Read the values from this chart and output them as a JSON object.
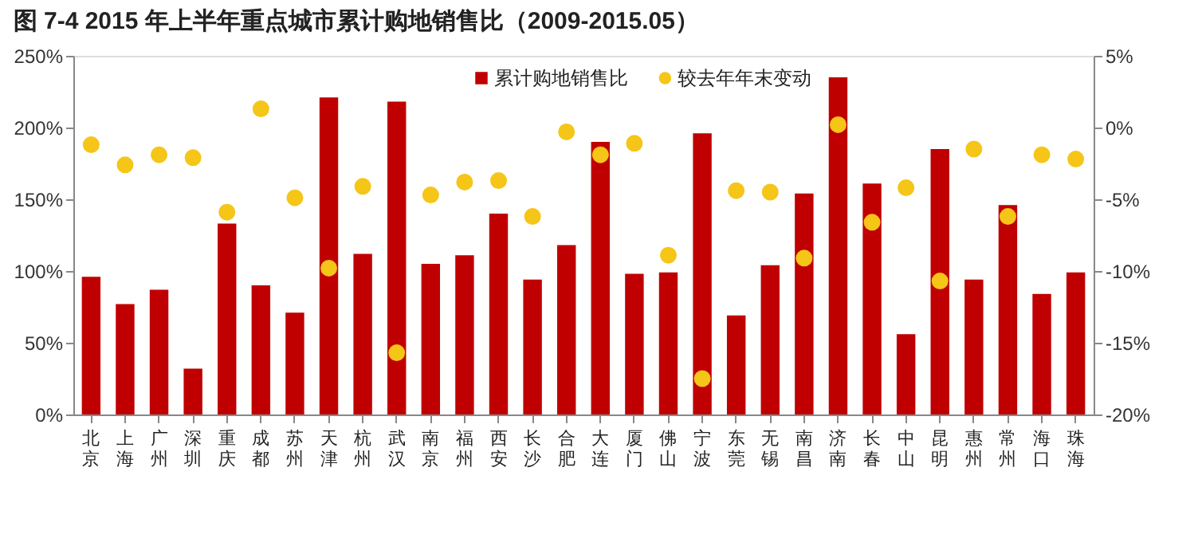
{
  "chart_data": {
    "type": "bar",
    "title": "图 7-4 2015 年上半年重点城市累计购地销售比（2009-2015.05）",
    "categories": [
      "北京",
      "上海",
      "广州",
      "深圳",
      "重庆",
      "成都",
      "苏州",
      "天津",
      "杭州",
      "武汉",
      "南京",
      "福州",
      "西安",
      "长沙",
      "合肥",
      "大连",
      "厦门",
      "佛山",
      "宁波",
      "东莞",
      "无锡",
      "南昌",
      "济南",
      "长春",
      "中山",
      "昆明",
      "惠州",
      "常州",
      "海口",
      "珠海"
    ],
    "series": [
      {
        "name": "累计购地销售比",
        "color": "#c00000",
        "values": [
          96,
          77,
          87,
          32,
          133,
          90,
          71,
          221,
          112,
          218,
          105,
          111,
          140,
          94,
          118,
          190,
          98,
          99,
          196,
          69,
          104,
          154,
          235,
          161,
          56,
          185,
          94,
          146,
          84,
          99
        ]
      },
      {
        "name": "较去年年末变动",
        "type": "scatter",
        "axis": "y2",
        "color": "#f5c518",
        "marker": "circle",
        "values": [
          -1.2,
          -2.6,
          -1.9,
          -2.1,
          -5.9,
          1.3,
          -4.9,
          -9.8,
          -4.1,
          -15.7,
          -4.7,
          -3.8,
          -3.7,
          -6.2,
          -0.3,
          -1.9,
          -1.1,
          -8.9,
          -17.5,
          -4.4,
          -4.5,
          -9.1,
          0.2,
          -6.6,
          -4.2,
          -10.7,
          -1.5,
          -6.2,
          -1.9,
          -2.2
        ]
      }
    ],
    "ylim": [
      0,
      250
    ],
    "yticks": [
      {
        "value": 0,
        "label": "0%"
      },
      {
        "value": 50,
        "label": "50%"
      },
      {
        "value": 100,
        "label": "100%"
      },
      {
        "value": 150,
        "label": "150%"
      },
      {
        "value": 200,
        "label": "200%"
      },
      {
        "value": 250,
        "label": "250%"
      }
    ],
    "y2lim": [
      -20,
      5
    ],
    "y2ticks": [
      {
        "value": -20,
        "label": "-20%"
      },
      {
        "value": -15,
        "label": "-15%"
      },
      {
        "value": -10,
        "label": "-10%"
      },
      {
        "value": -5,
        "label": "-5%"
      },
      {
        "value": 0,
        "label": "0%"
      },
      {
        "value": 5,
        "label": "5%"
      }
    ],
    "legend": "top",
    "grid": false
  }
}
